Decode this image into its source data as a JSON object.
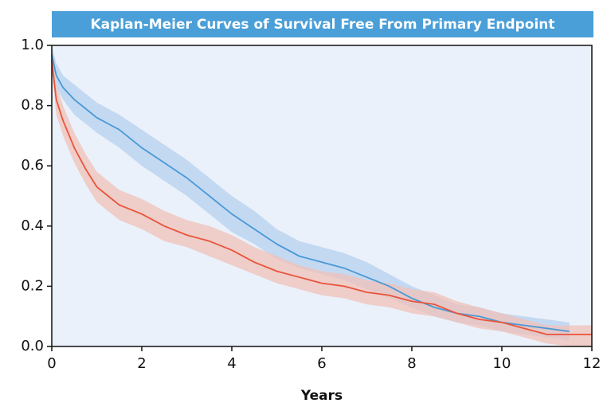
{
  "chart_data": {
    "type": "line",
    "title": "Kaplan-Meier Curves of Survival Free From Primary Endpoint",
    "x_label": "Years",
    "x": [
      0,
      0.1,
      0.25,
      0.5,
      0.75,
      1,
      1.5,
      2,
      2.5,
      3,
      3.5,
      4,
      4.5,
      5,
      5.5,
      6,
      6.5,
      7,
      7.5,
      8,
      8.5,
      9,
      9.5,
      10,
      10.5,
      11,
      11.5,
      12
    ],
    "series": [
      {
        "color": "#4a98d6",
        "band_color": "#b5d0ef",
        "values": [
          0.97,
          0.9,
          0.86,
          0.82,
          0.79,
          0.76,
          0.72,
          0.66,
          0.61,
          0.56,
          0.5,
          0.44,
          0.39,
          0.34,
          0.3,
          0.28,
          0.26,
          0.23,
          0.2,
          0.16,
          0.13,
          0.11,
          0.1,
          0.08,
          0.07,
          0.06,
          0.05,
          null
        ],
        "lower": [
          0.94,
          0.86,
          0.82,
          0.77,
          0.74,
          0.71,
          0.66,
          0.6,
          0.55,
          0.5,
          0.44,
          0.38,
          0.34,
          0.29,
          0.26,
          0.24,
          0.22,
          0.19,
          0.16,
          0.13,
          0.1,
          0.08,
          0.07,
          0.05,
          0.04,
          0.03,
          0.02,
          null
        ],
        "upper": [
          1.0,
          0.94,
          0.9,
          0.87,
          0.84,
          0.81,
          0.77,
          0.72,
          0.67,
          0.62,
          0.56,
          0.5,
          0.45,
          0.39,
          0.35,
          0.33,
          0.31,
          0.28,
          0.24,
          0.2,
          0.17,
          0.14,
          0.13,
          0.11,
          0.1,
          0.09,
          0.08,
          null
        ]
      },
      {
        "color": "#e8543a",
        "band_color": "#f0c0b8",
        "values": [
          0.95,
          0.82,
          0.75,
          0.66,
          0.59,
          0.53,
          0.47,
          0.44,
          0.4,
          0.37,
          0.35,
          0.32,
          0.28,
          0.25,
          0.23,
          0.21,
          0.2,
          0.18,
          0.17,
          0.15,
          0.14,
          0.11,
          0.09,
          0.08,
          0.06,
          0.04,
          0.04,
          0.04
        ],
        "lower": [
          0.92,
          0.77,
          0.7,
          0.61,
          0.54,
          0.48,
          0.42,
          0.39,
          0.35,
          0.33,
          0.3,
          0.27,
          0.24,
          0.21,
          0.19,
          0.17,
          0.16,
          0.14,
          0.13,
          0.11,
          0.1,
          0.08,
          0.06,
          0.05,
          0.03,
          0.01,
          0.0,
          0.0
        ],
        "upper": [
          0.98,
          0.87,
          0.8,
          0.71,
          0.64,
          0.58,
          0.52,
          0.49,
          0.45,
          0.42,
          0.4,
          0.37,
          0.33,
          0.3,
          0.27,
          0.25,
          0.24,
          0.22,
          0.21,
          0.19,
          0.18,
          0.15,
          0.13,
          0.11,
          0.09,
          0.07,
          0.07,
          0.07
        ]
      }
    ],
    "xlim": [
      0,
      12
    ],
    "ylim": [
      0,
      1
    ],
    "xticks": [
      0,
      2,
      4,
      6,
      8,
      10,
      12
    ],
    "yticks": [
      {
        "value": 0,
        "label": "0.0"
      },
      0.2,
      0.4,
      0.6,
      0.8,
      {
        "value": 1,
        "label": "1.0"
      }
    ],
    "title_background": "#4a9fd8",
    "plot_background": "#eaf1fa"
  }
}
